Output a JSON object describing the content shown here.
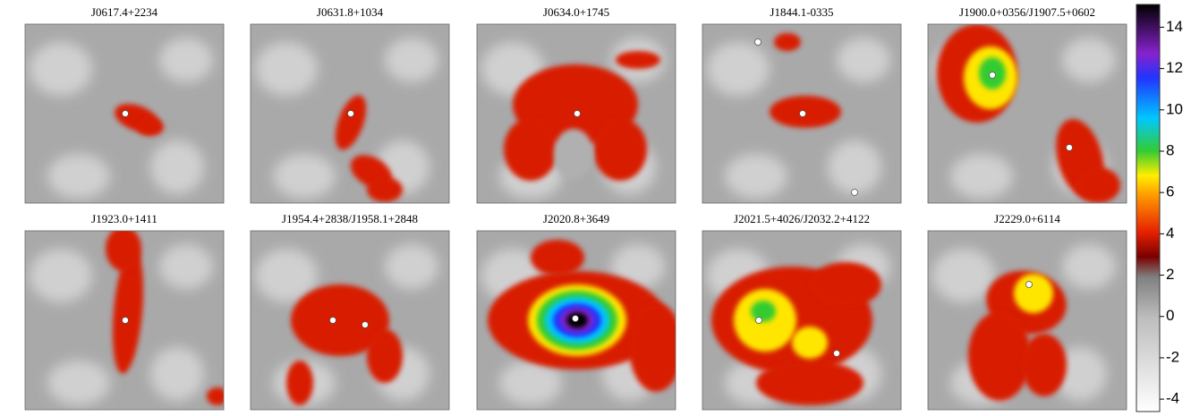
{
  "panels": [
    {
      "title": "J0617.4+2234"
    },
    {
      "title": "J0631.8+1034"
    },
    {
      "title": "J0634.0+1745"
    },
    {
      "title": "J1844.1-0335"
    },
    {
      "title": "J1900.0+0356/J1907.5+0602"
    },
    {
      "title": "J1923.0+1411"
    },
    {
      "title": "J1954.4+2838/J1958.1+2848"
    },
    {
      "title": "J2020.8+3649"
    },
    {
      "title": "J2021.5+4026/J2032.2+4122"
    },
    {
      "title": "J2229.0+6114"
    }
  ],
  "colorbar": {
    "range": [
      -4.6,
      15.1
    ],
    "ticks": [
      14,
      12,
      10,
      8,
      6,
      4,
      2,
      0,
      -2,
      -4
    ]
  }
}
